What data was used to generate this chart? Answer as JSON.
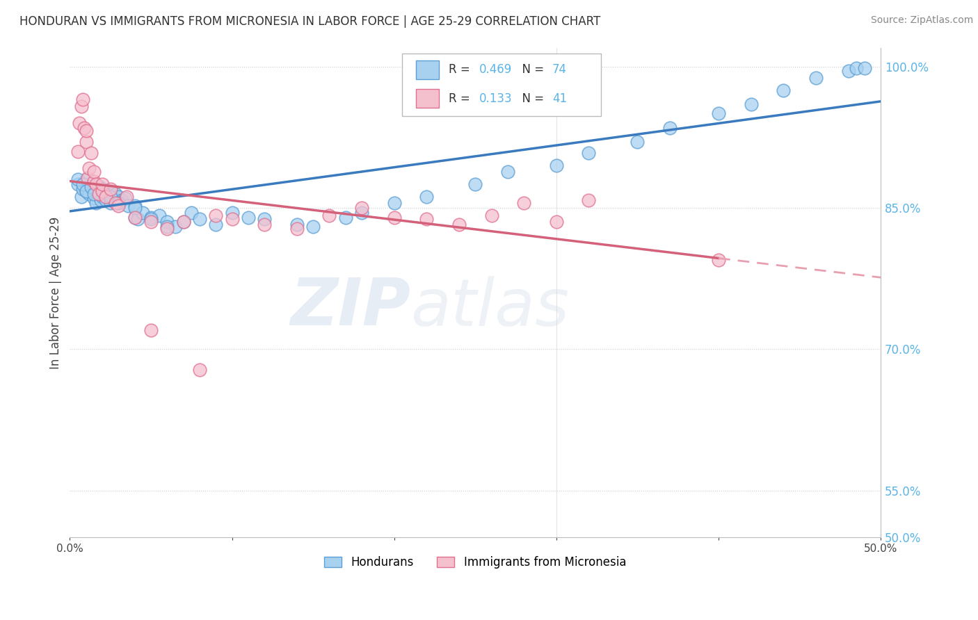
{
  "title": "HONDURAN VS IMMIGRANTS FROM MICRONESIA IN LABOR FORCE | AGE 25-29 CORRELATION CHART",
  "source": "Source: ZipAtlas.com",
  "ylabel": "In Labor Force | Age 25-29",
  "xlim": [
    0.0,
    0.5
  ],
  "ylim": [
    0.5,
    1.02
  ],
  "xtick_vals": [
    0.0,
    0.1,
    0.2,
    0.3,
    0.4,
    0.5
  ],
  "xtick_labels": [
    "0.0%",
    "",
    "",
    "",
    "",
    "50.0%"
  ],
  "ytick_vals": [
    0.5,
    0.55,
    0.7,
    0.85,
    1.0
  ],
  "ytick_labels": [
    "50.0%",
    "55.0%",
    "70.0%",
    "85.0%",
    "100.0%"
  ],
  "blue_fill": "#a8d1f0",
  "blue_edge": "#5b9fd4",
  "pink_fill": "#f5c0ce",
  "pink_edge": "#e07090",
  "blue_line_color": "#3a7abf",
  "pink_line_solid_color": "#d4607a",
  "pink_line_dash_color": "#e8a0b0",
  "blue_R": 0.469,
  "blue_N": 74,
  "pink_R": 0.133,
  "pink_N": 41,
  "legend_blue_label": "Hondurans",
  "legend_pink_label": "Immigrants from Micronesia",
  "watermark_zip": "ZIP",
  "watermark_atlas": "atlas",
  "blue_x": [
    0.005,
    0.007,
    0.008,
    0.01,
    0.01,
    0.01,
    0.012,
    0.013,
    0.015,
    0.015,
    0.015,
    0.016,
    0.017,
    0.018,
    0.018,
    0.019,
    0.02,
    0.02,
    0.022,
    0.023,
    0.025,
    0.025,
    0.027,
    0.028,
    0.03,
    0.03,
    0.032,
    0.034,
    0.036,
    0.04,
    0.04,
    0.042,
    0.045,
    0.05,
    0.055,
    0.06,
    0.065,
    0.07,
    0.075,
    0.08,
    0.09,
    0.1,
    0.11,
    0.12,
    0.14,
    0.15,
    0.17,
    0.18,
    0.2,
    0.22,
    0.25,
    0.27,
    0.3,
    0.32,
    0.35,
    0.37,
    0.4,
    0.42,
    0.44,
    0.46,
    0.48,
    0.485,
    0.49,
    0.005,
    0.008,
    0.01,
    0.013,
    0.015,
    0.02,
    0.025,
    0.03,
    0.04,
    0.05,
    0.06
  ],
  "blue_y": [
    0.875,
    0.862,
    0.87,
    0.868,
    0.875,
    0.88,
    0.865,
    0.872,
    0.86,
    0.868,
    0.875,
    0.855,
    0.87,
    0.865,
    0.873,
    0.858,
    0.862,
    0.87,
    0.858,
    0.865,
    0.855,
    0.868,
    0.86,
    0.865,
    0.855,
    0.862,
    0.858,
    0.86,
    0.852,
    0.84,
    0.852,
    0.838,
    0.845,
    0.84,
    0.842,
    0.835,
    0.83,
    0.835,
    0.845,
    0.838,
    0.832,
    0.845,
    0.84,
    0.838,
    0.832,
    0.83,
    0.84,
    0.845,
    0.855,
    0.862,
    0.875,
    0.888,
    0.895,
    0.908,
    0.92,
    0.935,
    0.95,
    0.96,
    0.975,
    0.988,
    0.995,
    0.998,
    0.998,
    0.88,
    0.875,
    0.868,
    0.872,
    0.865,
    0.87,
    0.862,
    0.855,
    0.85,
    0.838,
    0.83
  ],
  "pink_x": [
    0.005,
    0.006,
    0.007,
    0.008,
    0.009,
    0.01,
    0.01,
    0.011,
    0.012,
    0.013,
    0.015,
    0.015,
    0.016,
    0.018,
    0.02,
    0.02,
    0.022,
    0.025,
    0.028,
    0.03,
    0.035,
    0.04,
    0.05,
    0.06,
    0.07,
    0.09,
    0.1,
    0.12,
    0.14,
    0.16,
    0.18,
    0.2,
    0.22,
    0.24,
    0.26,
    0.28,
    0.3,
    0.32,
    0.05,
    0.08,
    0.4
  ],
  "pink_y": [
    0.91,
    0.94,
    0.958,
    0.965,
    0.935,
    0.92,
    0.932,
    0.882,
    0.892,
    0.908,
    0.878,
    0.888,
    0.875,
    0.865,
    0.868,
    0.875,
    0.862,
    0.87,
    0.855,
    0.852,
    0.862,
    0.84,
    0.835,
    0.828,
    0.835,
    0.842,
    0.838,
    0.832,
    0.828,
    0.842,
    0.85,
    0.84,
    0.838,
    0.832,
    0.842,
    0.855,
    0.835,
    0.858,
    0.72,
    0.678,
    0.795
  ]
}
